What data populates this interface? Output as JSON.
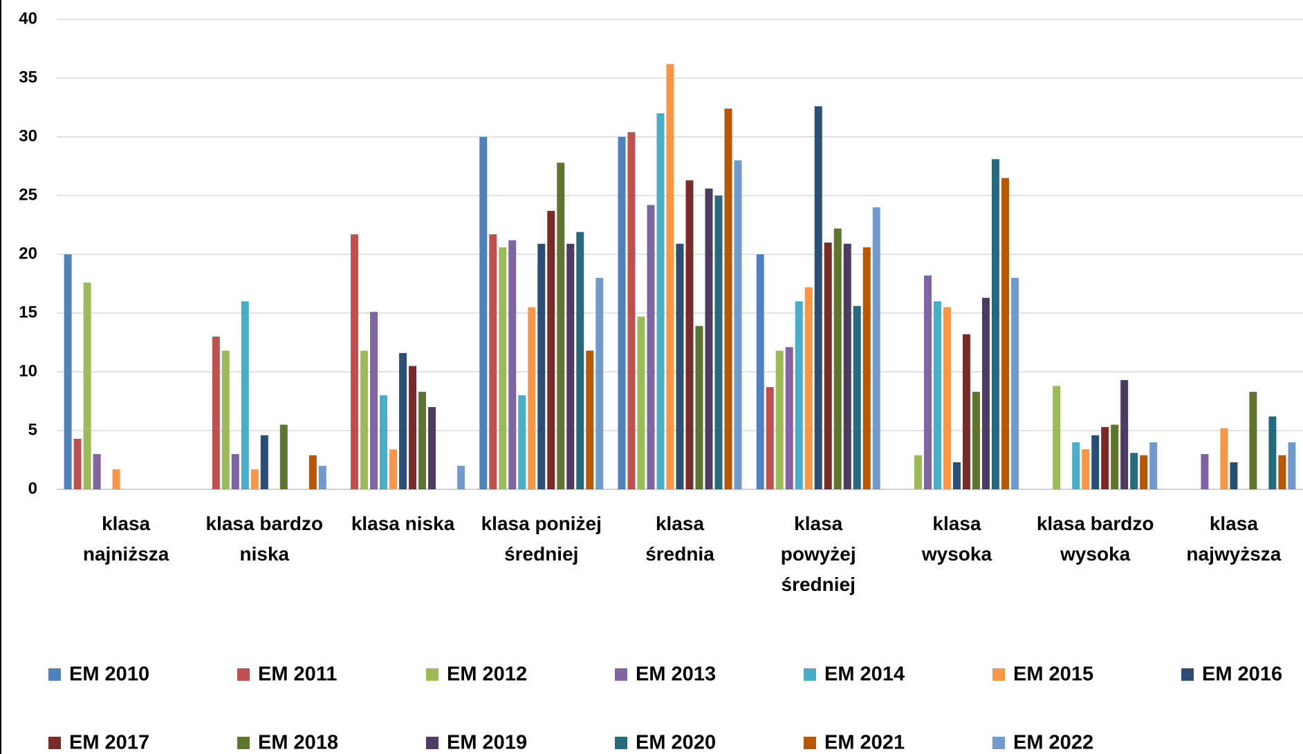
{
  "chart_data": {
    "type": "bar",
    "categories": [
      "klasa\nnajniższa",
      "klasa bardzo\nniska",
      "klasa niska",
      "klasa poniżej\nśredniej",
      "klasa\nśrednia",
      "klasa\npowyżej\nśredniej",
      "klasa\nwysoka",
      "klasa bardzo\nwysoka",
      "klasa\nnajwyższa"
    ],
    "series": [
      {
        "name": "EM 2010",
        "color": "#4f81bd",
        "values": [
          20,
          0,
          0,
          30,
          30,
          20,
          0,
          0,
          0
        ]
      },
      {
        "name": "EM 2011",
        "color": "#c0504d",
        "values": [
          4.3,
          13,
          21.7,
          21.7,
          30.4,
          8.7,
          0,
          0,
          0
        ]
      },
      {
        "name": "EM 2012",
        "color": "#9bbb59",
        "values": [
          17.6,
          11.8,
          11.8,
          20.6,
          14.7,
          11.8,
          2.9,
          8.8,
          0
        ]
      },
      {
        "name": "EM 2013",
        "color": "#8064a2",
        "values": [
          3,
          3,
          15.1,
          21.2,
          24.2,
          12.1,
          18.2,
          0,
          3
        ]
      },
      {
        "name": "EM 2014",
        "color": "#4bacc6",
        "values": [
          0,
          16,
          8,
          8,
          32,
          16,
          16,
          4,
          0
        ]
      },
      {
        "name": "EM 2015",
        "color": "#f79646",
        "values": [
          1.7,
          1.7,
          3.4,
          15.5,
          36.2,
          17.2,
          15.5,
          3.4,
          5.2
        ]
      },
      {
        "name": "EM 2016",
        "color": "#2c4d75",
        "values": [
          0,
          4.6,
          11.6,
          20.9,
          20.9,
          32.6,
          2.3,
          4.6,
          2.3
        ]
      },
      {
        "name": "EM 2017",
        "color": "#772c2a",
        "values": [
          0,
          0,
          10.5,
          23.7,
          26.3,
          21,
          13.2,
          5.3,
          0
        ]
      },
      {
        "name": "EM 2018",
        "color": "#5f7530",
        "values": [
          0,
          5.5,
          8.3,
          27.8,
          13.9,
          22.2,
          8.3,
          5.5,
          8.3
        ]
      },
      {
        "name": "EM 2019",
        "color": "#4d3b62",
        "values": [
          0,
          0,
          7,
          20.9,
          25.6,
          20.9,
          16.3,
          9.3,
          0
        ]
      },
      {
        "name": "EM 2020",
        "color": "#276a7c",
        "values": [
          0,
          0,
          0,
          21.9,
          25,
          15.6,
          28.1,
          3.1,
          6.2
        ]
      },
      {
        "name": "EM 2021",
        "color": "#b65708",
        "values": [
          0,
          2.9,
          0,
          11.8,
          32.4,
          20.6,
          26.5,
          2.9,
          2.9
        ]
      },
      {
        "name": "EM 2022",
        "color": "#729aca",
        "values": [
          0,
          2,
          2,
          18,
          28,
          24,
          18,
          4,
          4
        ]
      }
    ],
    "ylim": [
      0,
      40
    ],
    "yticks": [
      0,
      5,
      10,
      15,
      20,
      25,
      30,
      35,
      40
    ],
    "grid": true
  }
}
